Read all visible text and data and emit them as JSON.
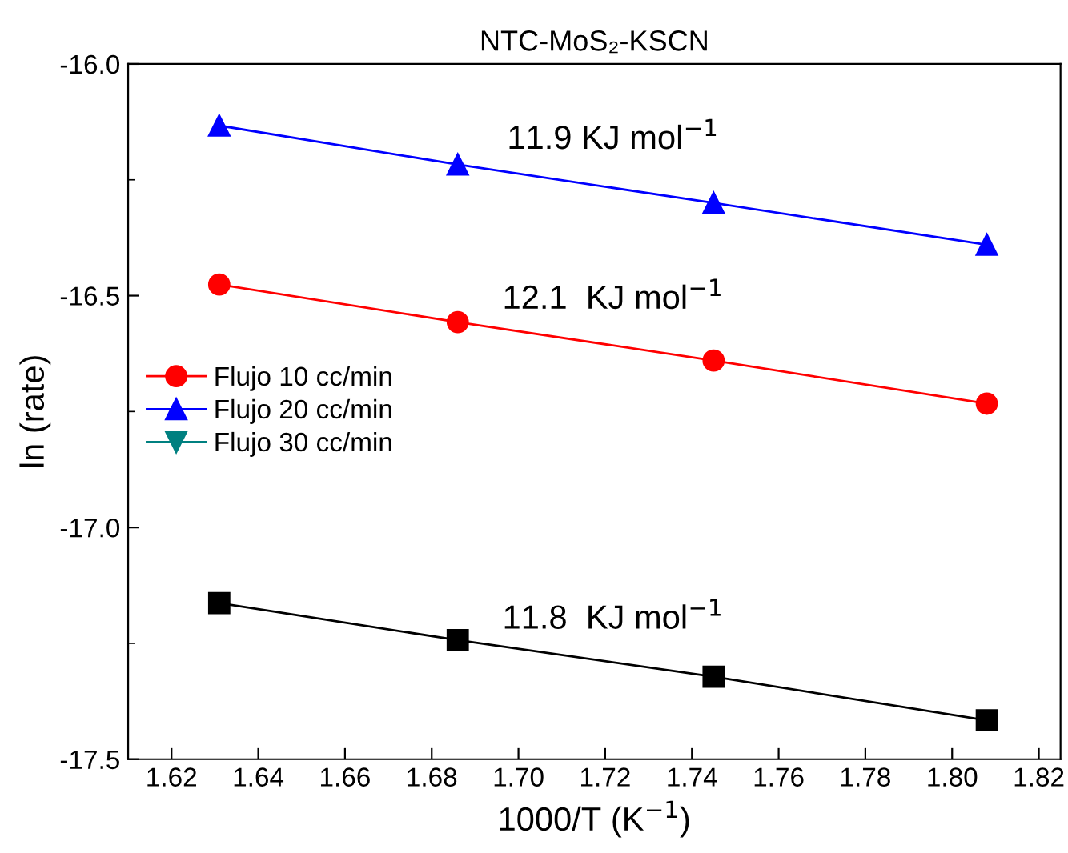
{
  "chart_data": {
    "type": "line",
    "title": "NTC-MoS₂-KSCN",
    "xlabel": "1000/T (K$^{−1}$)",
    "ylabel": "ln (rate)",
    "x": [
      1.631,
      1.686,
      1.745,
      1.808
    ],
    "series": [
      {
        "name": "Flujo 10 cc/min",
        "color": "#ff0000",
        "marker": "circle",
        "values": [
          -16.476,
          -16.557,
          -16.64,
          -16.733
        ]
      },
      {
        "name": "Flujo 20 cc/min",
        "color": "#0000ff",
        "marker": "triangle",
        "values": [
          -16.133,
          -16.217,
          -16.3,
          -16.39
        ]
      },
      {
        "name": "Flujo 30 cc/min",
        "color": "#008080",
        "marker": "triangle_down",
        "values": [
          null,
          null,
          null,
          null
        ]
      },
      {
        "color": "#000000",
        "marker": "square",
        "values": [
          -17.163,
          -17.243,
          -17.322,
          -17.416
        ]
      }
    ],
    "xlim": [
      1.61,
      1.825
    ],
    "xticks": [
      {
        "value": 1.62,
        "label": "1.62"
      },
      {
        "value": 1.64,
        "label": "1.64"
      },
      {
        "value": 1.66,
        "label": "1.66"
      },
      {
        "value": 1.68,
        "label": "1.68"
      },
      {
        "value": 1.7,
        "label": "1.70"
      },
      {
        "value": 1.72,
        "label": "1.72"
      },
      {
        "value": 1.74,
        "label": "1.74"
      },
      {
        "value": 1.76,
        "label": "1.76"
      },
      {
        "value": 1.78,
        "label": "1.78"
      },
      {
        "value": 1.8,
        "label": "1.80"
      },
      {
        "value": 1.82,
        "label": "1.82"
      }
    ],
    "ylim": [
      -17.5,
      -16.0
    ],
    "yticks": [
      {
        "value": -17.5,
        "label": "-17.5"
      },
      {
        "value": -17.0,
        "label": "-17.0"
      },
      {
        "value": -16.5,
        "label": "-16.5"
      },
      {
        "value": -16.0,
        "label": "-16.0"
      }
    ],
    "annotations": [
      "11.9 KJ mol$^{−1}$",
      "12.1  KJ mol$^{−1}$",
      "11.8  KJ mol$^{−1}$"
    ],
    "legend": "center left",
    "grid": false,
    "line_style": "solid"
  }
}
